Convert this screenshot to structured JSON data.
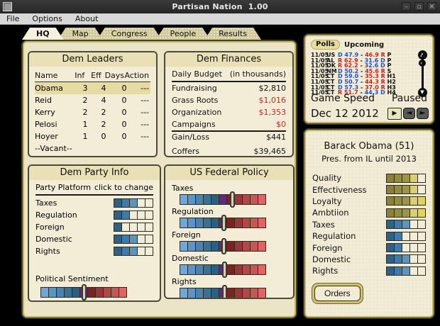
{
  "window": {
    "title": "Partisan Nation  1.00",
    "menu": [
      "File",
      "Options",
      "About"
    ],
    "controls": {
      "minimize": "–",
      "maximize": "▫",
      "close": "✕"
    }
  },
  "tabs": [
    {
      "label": "HQ",
      "active": true
    },
    {
      "label": "Map",
      "active": false
    },
    {
      "label": "Congress",
      "active": false
    },
    {
      "label": "People",
      "active": false
    },
    {
      "label": "Results",
      "active": false
    }
  ],
  "leaders": {
    "title": "Dem Leaders",
    "columns": [
      "Name",
      "Inf",
      "Eff",
      "Days",
      "Action"
    ],
    "rows": [
      {
        "name": "Obama",
        "inf": "3",
        "eff": "4",
        "days": "0",
        "action": "---",
        "selected": true
      },
      {
        "name": "Reid",
        "inf": "2",
        "eff": "4",
        "days": "0",
        "action": "---",
        "selected": false
      },
      {
        "name": "Kerry",
        "inf": "2",
        "eff": "2",
        "days": "0",
        "action": "---",
        "selected": false
      },
      {
        "name": "Pelosi",
        "inf": "1",
        "eff": "2",
        "days": "0",
        "action": "---",
        "selected": false
      },
      {
        "name": "Hoyer",
        "inf": "1",
        "eff": "0",
        "days": "0",
        "action": "---",
        "selected": false
      }
    ],
    "vacant": "--Vacant--"
  },
  "finances": {
    "title": "Dem Finances",
    "header": {
      "label": "Daily Budget",
      "note": "(in thousands)"
    },
    "budget_rows": [
      {
        "label": "Fundraising",
        "value": "$2,810",
        "negative": false
      },
      {
        "label": "Grass Roots",
        "value": "$1,016",
        "negative": true
      },
      {
        "label": "Organization",
        "value": "$1,353",
        "negative": true
      },
      {
        "label": "Campaigns",
        "value": "$0",
        "negative": true
      }
    ],
    "gain": {
      "label": "Gain/Loss",
      "value": "$441"
    },
    "coffers": {
      "label": "Coffers",
      "value": "$39,465"
    }
  },
  "party_info": {
    "title": "Dem Party Info",
    "header": {
      "left": "Party Platform",
      "right": "click to change"
    },
    "platform": [
      {
        "label": "Taxes",
        "filled": 3
      },
      {
        "label": "Regulation",
        "filled": 2
      },
      {
        "label": "Foreign",
        "filled": 1
      },
      {
        "label": "Domestic",
        "filled": 3
      },
      {
        "label": "Rights",
        "filled": 3
      }
    ],
    "sentiment": {
      "label": "Political Sentiment",
      "handle_pos": 0.46
    }
  },
  "policy": {
    "title": "US Federal Policy",
    "rows": [
      {
        "label": "Taxes",
        "handle_pos": 0.56
      },
      {
        "label": "Regulation",
        "handle_pos": 0.47
      },
      {
        "label": "Foreign",
        "handle_pos": 0.47
      },
      {
        "label": "Domestic",
        "handle_pos": 0.475
      },
      {
        "label": "Rights",
        "handle_pos": 0.475
      }
    ]
  },
  "polls": {
    "tab_active": "Polls",
    "tab_inactive": "Upcoming",
    "rows": [
      {
        "date": "11/05",
        "region": "US",
        "w_party": "D",
        "w_score": "47.9",
        "l_score": "46.9",
        "l_party": "R",
        "race": "P"
      },
      {
        "date": "11/05",
        "region": "AL",
        "w_party": "R",
        "w_score": "62.9",
        "l_score": "31.6",
        "l_party": "D",
        "race": "P"
      },
      {
        "date": "11/05",
        "region": "OK",
        "w_party": "R",
        "w_score": "62.2",
        "l_score": "32.6",
        "l_party": "D",
        "race": "P"
      },
      {
        "date": "11/05",
        "region": "NM",
        "w_party": "D",
        "w_score": "50.2",
        "l_score": "45.6",
        "l_party": "R",
        "race": "S"
      },
      {
        "date": "11/05",
        "region": "CT",
        "w_party": "D",
        "w_score": "59.0",
        "l_score": "35.3",
        "l_party": "R",
        "race": "H1"
      },
      {
        "date": "11/05",
        "region": "CT",
        "w_party": "D",
        "w_score": "50.7",
        "l_score": "44.3",
        "l_party": "R",
        "race": "H2"
      },
      {
        "date": "11/05",
        "region": "CT",
        "w_party": "D",
        "w_score": "57.3",
        "l_score": "37.0",
        "l_party": "R",
        "race": "H3"
      },
      {
        "date": "11/05",
        "region": "CT",
        "w_party": "R",
        "w_score": "51.7",
        "l_score": "44.3",
        "l_party": "D",
        "race": "H4"
      }
    ],
    "game_speed_label": "Game Speed",
    "status": "Paused",
    "date": "Dec 12 2012",
    "buttons": {
      "play": "▶",
      "back": "◄",
      "forward": "►"
    }
  },
  "leader_detail": {
    "name": "Barack Obama (51)",
    "subtitle": "Pres. from IL until 2013",
    "stats": [
      {
        "label": "Quality",
        "filled": 4,
        "scheme": "olive"
      },
      {
        "label": "Effectiveness",
        "filled": 4,
        "scheme": "olive"
      },
      {
        "label": "Loyalty",
        "filled": 5,
        "scheme": "olive"
      },
      {
        "label": "Ambtiion",
        "filled": 5,
        "scheme": "olive"
      },
      {
        "label": "Taxes",
        "filled": 3,
        "scheme": "blue"
      },
      {
        "label": "Regulation",
        "filled": 2,
        "scheme": "blue"
      },
      {
        "label": "Foreign",
        "filled": 2,
        "scheme": "blue"
      },
      {
        "label": "Domestic",
        "filled": 3,
        "scheme": "blue"
      },
      {
        "label": "Rights",
        "filled": 3,
        "scheme": "blue"
      }
    ],
    "orders_label": "Orders"
  },
  "colors": {
    "poll_blue": "#1f4fd0",
    "poll_red": "#cc2020",
    "money_red": "#cc2222",
    "empty_seg": "#f2ecd8",
    "blue_scale": [
      "#2d6186",
      "#3e7ba8",
      "#5b94be",
      "#3e7ba8",
      "#2d6186"
    ],
    "olive_scale": [
      "#8b8136",
      "#968c3e",
      "#9d9444",
      "#d8ce74",
      "#e2d54d"
    ],
    "policy_scale": [
      "#6fa8d8",
      "#5b94c6",
      "#4a83b0",
      "#3a7095",
      "#2d5f80",
      "#5e2b80",
      "#7c2424",
      "#97373a",
      "#b04848",
      "#c55656",
      "#e36262"
    ]
  }
}
